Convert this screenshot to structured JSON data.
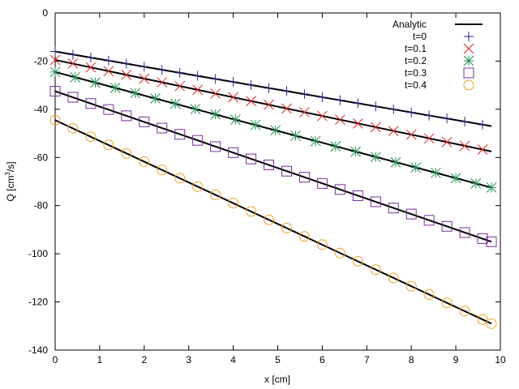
{
  "chart_data": {
    "type": "scatter",
    "title": "",
    "xlabel": "x [cm]",
    "ylabel_prefix": "Q [cm",
    "ylabel_sup": "3",
    "ylabel_suffix": "/s]",
    "xlim": [
      0,
      10
    ],
    "ylim": [
      -140,
      0
    ],
    "xticks": [
      0,
      1,
      2,
      3,
      4,
      5,
      6,
      7,
      8,
      9,
      10
    ],
    "yticks": [
      0,
      -20,
      -40,
      -60,
      -80,
      -100,
      -120,
      -140
    ],
    "grid": false,
    "legend_position": "top-right",
    "series": [
      {
        "name": "Analytic",
        "kind": "line",
        "color": "#000000",
        "segments": [
          {
            "x": [
              0,
              9.8
            ],
            "y": [
              -16,
              -47
            ]
          },
          {
            "x": [
              0,
              9.8
            ],
            "y": [
              -19.5,
              -57.5
            ]
          },
          {
            "x": [
              0,
              9.8
            ],
            "y": [
              -24.5,
              -72.5
            ]
          },
          {
            "x": [
              0,
              9.8
            ],
            "y": [
              -32.5,
              -95
            ]
          },
          {
            "x": [
              0,
              9.8
            ],
            "y": [
              -44.5,
              -129
            ]
          }
        ]
      },
      {
        "name": "t=0",
        "kind": "points",
        "marker": "plus",
        "color": "#2a2a8c",
        "x": [
          0,
          0.4,
          0.8,
          1.2,
          1.6,
          2.0,
          2.4,
          2.8,
          3.2,
          3.6,
          4.0,
          4.4,
          4.8,
          5.2,
          5.6,
          6.0,
          6.4,
          6.8,
          7.2,
          7.6,
          8.0,
          8.4,
          8.8,
          9.2,
          9.6
        ],
        "y": [
          -16,
          -17.3,
          -18.5,
          -19.8,
          -21,
          -22.3,
          -23.6,
          -24.8,
          -26.1,
          -27.4,
          -28.6,
          -29.9,
          -31.2,
          -32.4,
          -33.7,
          -35,
          -36.2,
          -37.5,
          -38.8,
          -40,
          -41.3,
          -42.6,
          -43.8,
          -45.1,
          -46.4
        ]
      },
      {
        "name": "t=0.1",
        "kind": "points",
        "marker": "cross",
        "color": "#e8201e",
        "x": [
          0,
          0.4,
          0.8,
          1.2,
          1.6,
          2.0,
          2.4,
          2.8,
          3.2,
          3.6,
          4.0,
          4.4,
          4.8,
          5.2,
          5.6,
          6.0,
          6.4,
          6.8,
          7.2,
          7.6,
          8.0,
          8.4,
          8.8,
          9.2,
          9.6
        ],
        "y": [
          -19.5,
          -21,
          -22.6,
          -24.2,
          -25.7,
          -27.3,
          -28.8,
          -30.4,
          -31.9,
          -33.5,
          -35,
          -36.6,
          -38.1,
          -39.7,
          -41.2,
          -42.8,
          -44.3,
          -45.9,
          -47.4,
          -49,
          -50.5,
          -52.1,
          -53.6,
          -55.2,
          -56.7
        ]
      },
      {
        "name": "t=0.2",
        "kind": "points",
        "marker": "star",
        "color": "#1e8c4e",
        "x": [
          0,
          0.45,
          0.9,
          1.35,
          1.8,
          2.25,
          2.7,
          3.15,
          3.6,
          4.05,
          4.5,
          4.95,
          5.4,
          5.85,
          6.3,
          6.75,
          7.2,
          7.65,
          8.1,
          8.55,
          9.0,
          9.45,
          9.8
        ],
        "y": [
          -24.5,
          -26.7,
          -28.9,
          -31.1,
          -33.3,
          -35.5,
          -37.7,
          -39.9,
          -42.1,
          -44.3,
          -46.5,
          -48.7,
          -51,
          -53.2,
          -55.4,
          -57.6,
          -59.8,
          -62,
          -64.2,
          -66.4,
          -68.6,
          -70.8,
          -72.5
        ]
      },
      {
        "name": "t=0.3",
        "kind": "points",
        "marker": "square",
        "color": "#7a2ca0",
        "x": [
          0,
          0.4,
          0.8,
          1.2,
          1.6,
          2.0,
          2.4,
          2.8,
          3.2,
          3.6,
          4.0,
          4.4,
          4.8,
          5.2,
          5.6,
          6.0,
          6.4,
          6.8,
          7.2,
          7.6,
          8.0,
          8.4,
          8.8,
          9.2,
          9.6,
          9.8
        ],
        "y": [
          -32.5,
          -35,
          -37.6,
          -40.1,
          -42.7,
          -45.2,
          -47.8,
          -50.4,
          -52.9,
          -55.5,
          -58,
          -60.6,
          -63.1,
          -65.7,
          -68.2,
          -70.8,
          -73.3,
          -75.9,
          -78.4,
          -81,
          -83.5,
          -86.1,
          -88.6,
          -91.2,
          -93.7,
          -95
        ]
      },
      {
        "name": "t=0.4",
        "kind": "points",
        "marker": "circle",
        "color": "#f0a020",
        "x": [
          0,
          0.4,
          0.8,
          1.2,
          1.6,
          2.0,
          2.4,
          2.8,
          3.2,
          3.6,
          4.0,
          4.4,
          4.8,
          5.2,
          5.6,
          6.0,
          6.4,
          6.8,
          7.2,
          7.6,
          8.0,
          8.4,
          8.8,
          9.2,
          9.6,
          9.8
        ],
        "y": [
          -44.5,
          -47.9,
          -51.4,
          -54.8,
          -58.3,
          -61.7,
          -65.2,
          -68.6,
          -72.1,
          -75.5,
          -79,
          -82.4,
          -85.9,
          -89.3,
          -92.8,
          -96.2,
          -99.7,
          -103.1,
          -106.6,
          -110,
          -113.5,
          -116.9,
          -120.4,
          -123.8,
          -127.3,
          -129
        ]
      }
    ]
  }
}
